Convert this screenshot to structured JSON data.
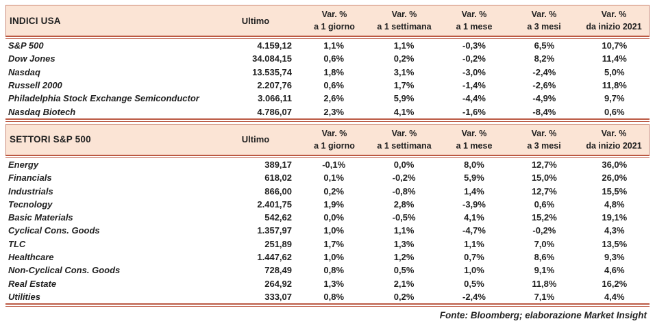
{
  "colors": {
    "band_background": "#fbe4d5",
    "band_border": "#c98672",
    "rule": "#bb5943",
    "text": "#212121"
  },
  "columns": {
    "ultimo": "Ultimo",
    "var_top": "Var. %",
    "var_subs": [
      "a 1 giorno",
      "a 1 settimana",
      "a 1 mese",
      "a 3 mesi",
      "da inizio 2021"
    ]
  },
  "tables": [
    {
      "title": "INDICI USA",
      "rows": [
        {
          "name": "S&P 500",
          "ultimo": "4.159,12",
          "vars": [
            "1,1%",
            "1,1%",
            "-0,3%",
            "6,5%",
            "10,7%"
          ]
        },
        {
          "name": "Dow Jones",
          "ultimo": "34.084,15",
          "vars": [
            "0,6%",
            "0,2%",
            "-0,2%",
            "8,2%",
            "11,4%"
          ]
        },
        {
          "name": "Nasdaq",
          "ultimo": "13.535,74",
          "vars": [
            "1,8%",
            "3,1%",
            "-3,0%",
            "-2,4%",
            "5,0%"
          ]
        },
        {
          "name": "Russell 2000",
          "ultimo": "2.207,76",
          "vars": [
            "0,6%",
            "1,7%",
            "-1,4%",
            "-2,6%",
            "11,8%"
          ]
        },
        {
          "name": "Philadelphia Stock Exchange Semiconductor",
          "ultimo": "3.066,11",
          "vars": [
            "2,6%",
            "5,9%",
            "-4,4%",
            "-4,9%",
            "9,7%"
          ]
        },
        {
          "name": "Nasdaq Biotech",
          "ultimo": "4.786,07",
          "vars": [
            "2,3%",
            "4,1%",
            "-1,6%",
            "-8,4%",
            "0,6%"
          ]
        }
      ]
    },
    {
      "title": "SETTORI S&P 500",
      "rows": [
        {
          "name": "Energy",
          "ultimo": "389,17",
          "vars": [
            "-0,1%",
            "0,0%",
            "8,0%",
            "12,7%",
            "36,0%"
          ]
        },
        {
          "name": "Financials",
          "ultimo": "618,02",
          "vars": [
            "0,1%",
            "-0,2%",
            "5,9%",
            "15,0%",
            "26,0%"
          ]
        },
        {
          "name": "Industrials",
          "ultimo": "866,00",
          "vars": [
            "0,2%",
            "-0,8%",
            "1,4%",
            "12,7%",
            "15,5%"
          ]
        },
        {
          "name": "Tecnology",
          "ultimo": "2.401,75",
          "vars": [
            "1,9%",
            "2,8%",
            "-3,9%",
            "0,6%",
            "4,8%"
          ]
        },
        {
          "name": "Basic Materials",
          "ultimo": "542,62",
          "vars": [
            "0,0%",
            "-0,5%",
            "4,1%",
            "15,2%",
            "19,1%"
          ]
        },
        {
          "name": "Cyclical Cons. Goods",
          "ultimo": "1.357,97",
          "vars": [
            "1,0%",
            "1,1%",
            "-4,7%",
            "-0,2%",
            "4,3%"
          ]
        },
        {
          "name": "TLC",
          "ultimo": "251,89",
          "vars": [
            "1,7%",
            "1,3%",
            "1,1%",
            "7,0%",
            "13,5%"
          ]
        },
        {
          "name": "Healthcare",
          "ultimo": "1.447,62",
          "vars": [
            "1,0%",
            "1,2%",
            "0,7%",
            "8,6%",
            "9,3%"
          ]
        },
        {
          "name": "Non-Cyclical Cons. Goods",
          "ultimo": "728,49",
          "vars": [
            "0,8%",
            "0,5%",
            "1,0%",
            "9,1%",
            "4,6%"
          ]
        },
        {
          "name": "Real Estate",
          "ultimo": "264,92",
          "vars": [
            "1,3%",
            "2,1%",
            "0,5%",
            "11,8%",
            "16,2%"
          ]
        },
        {
          "name": "Utilities",
          "ultimo": "333,07",
          "vars": [
            "0,8%",
            "0,2%",
            "-2,4%",
            "7,1%",
            "4,4%"
          ]
        }
      ]
    }
  ],
  "footer": {
    "source_note": "Fonte: Bloomberg; elaborazione Market Insight"
  }
}
